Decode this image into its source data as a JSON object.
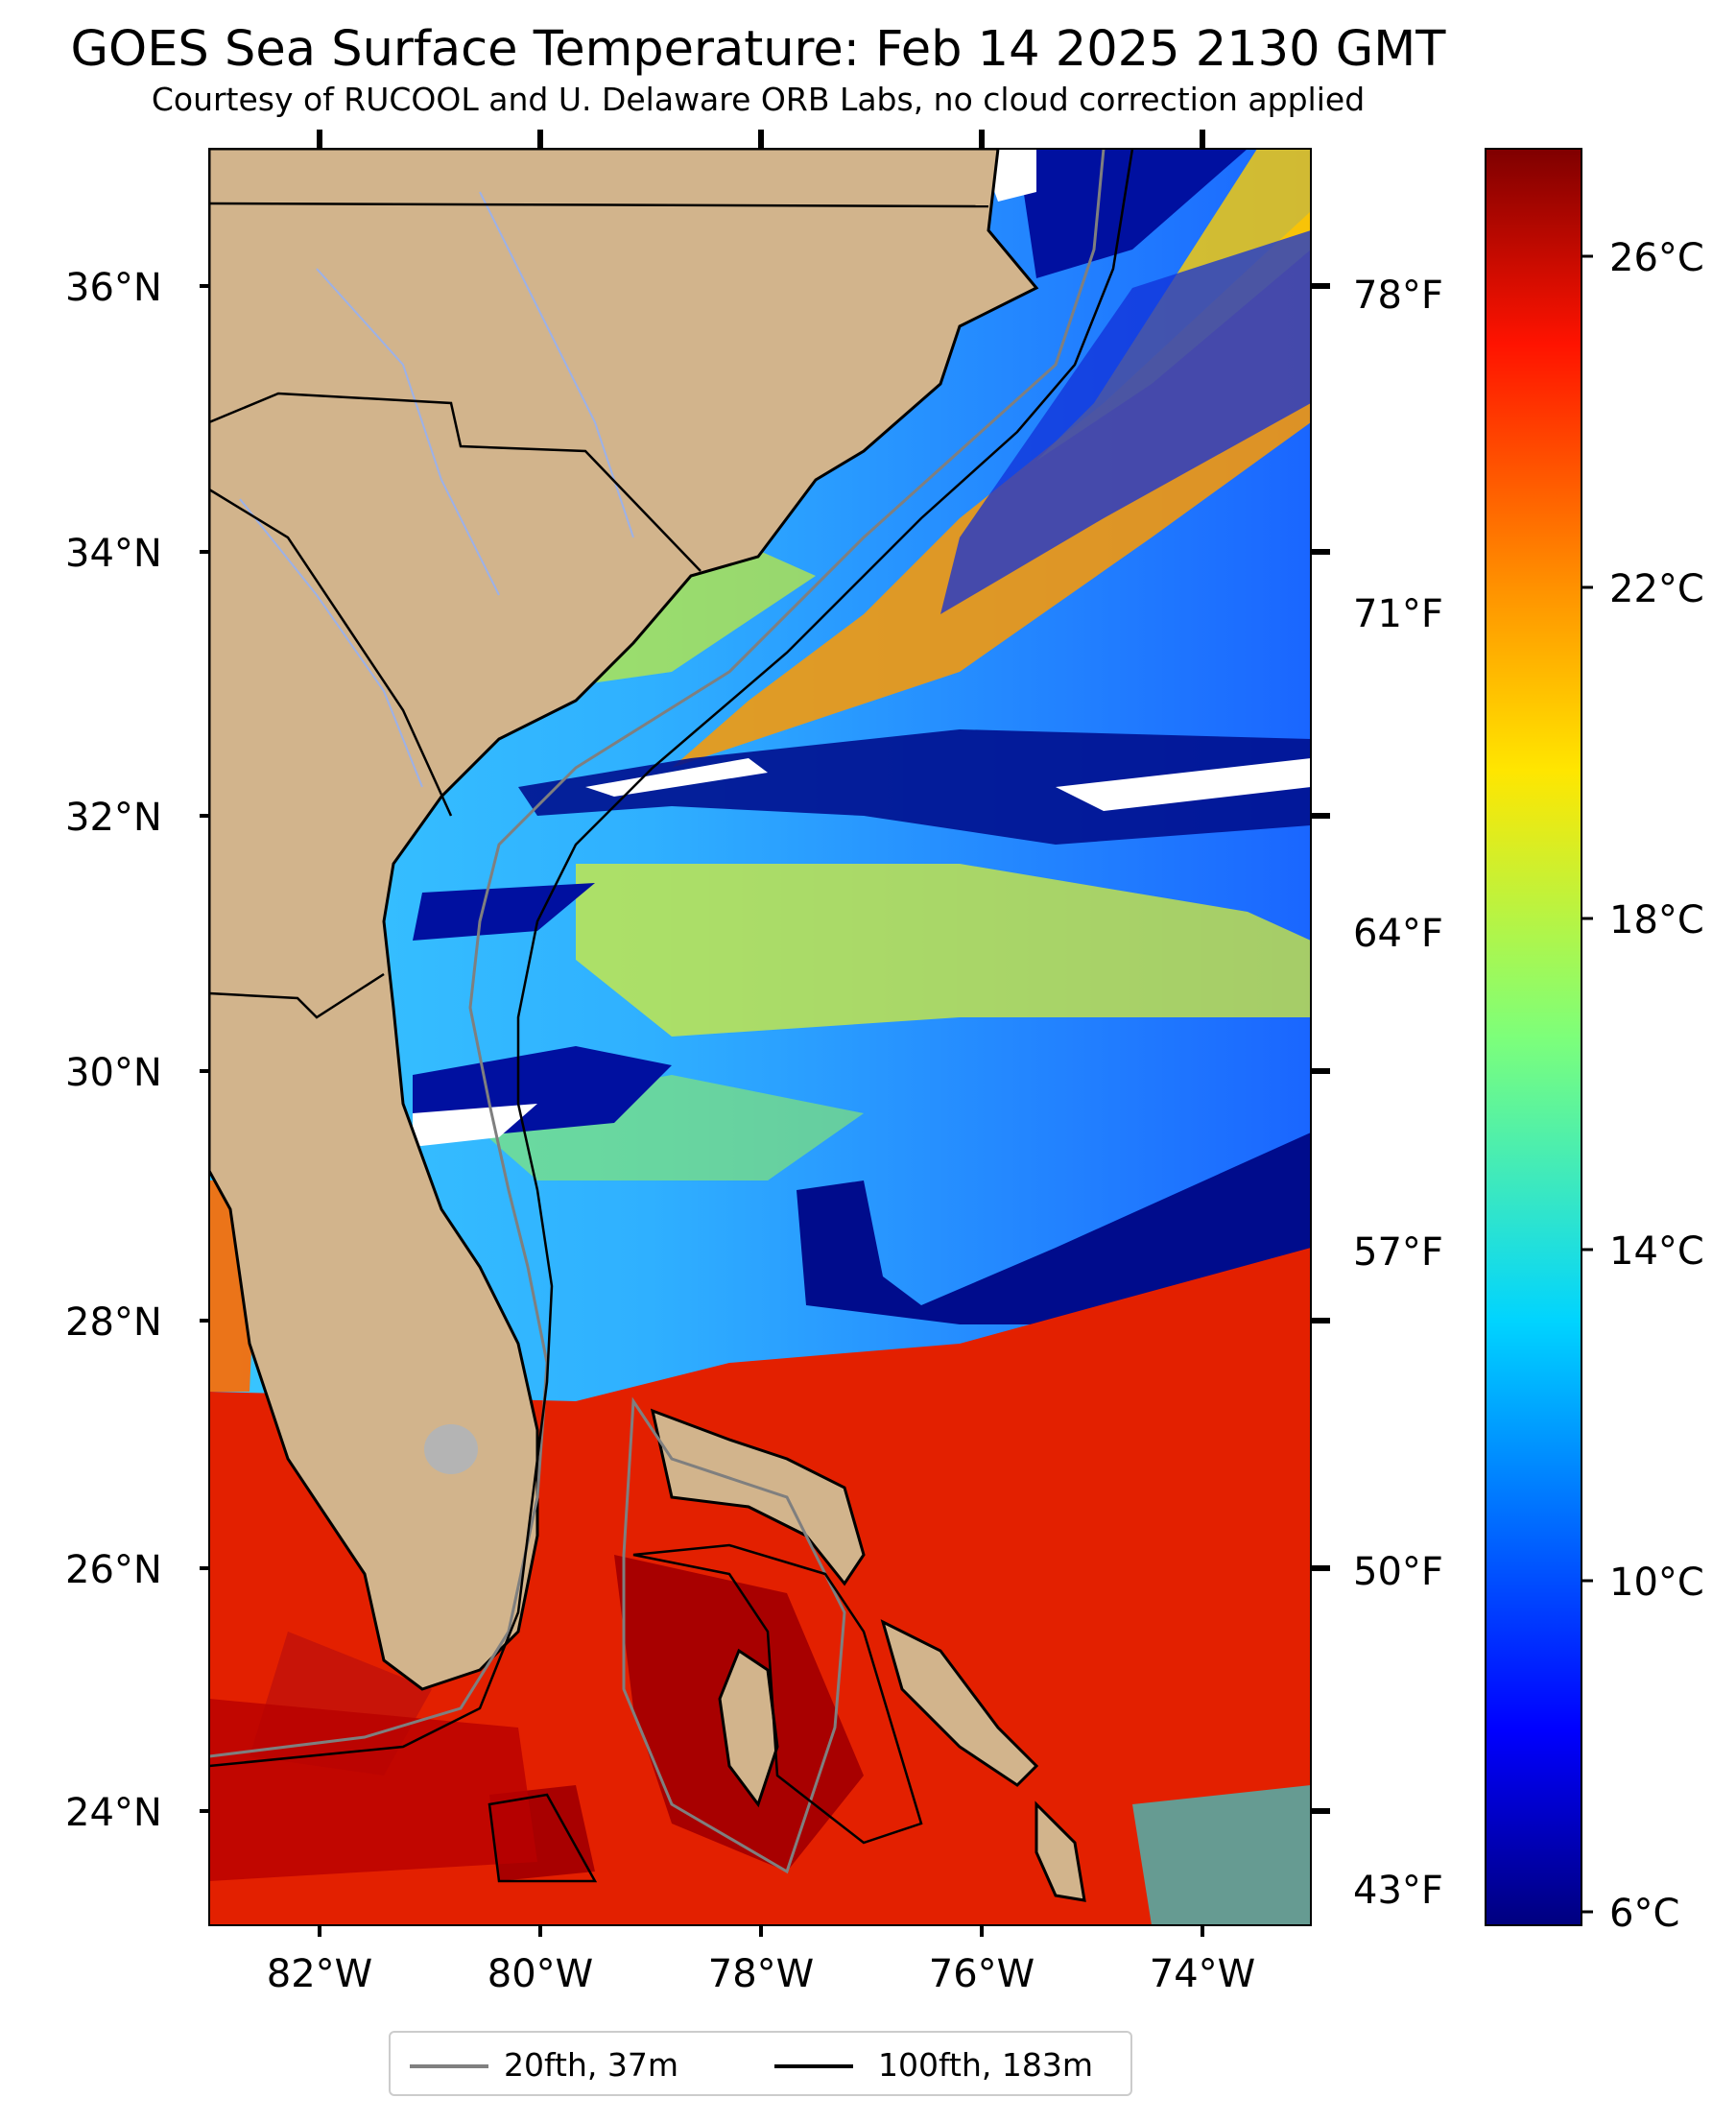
{
  "title": "GOES Sea Surface Temperature: Feb 14 2025 2130 GMT",
  "subtitle": "Courtesy of RUCOOL and U. Delaware ORB Labs, no cloud correction applied",
  "lat_labels": [
    "36°N",
    "34°N",
    "32°N",
    "30°N",
    "28°N",
    "26°N",
    "24°N"
  ],
  "lon_labels": [
    "82°W",
    "80°W",
    "78°W",
    "76°W",
    "74°W"
  ],
  "fahrenheit_labels": [
    "78°F",
    "71°F",
    "64°F",
    "57°F",
    "50°F",
    "43°F"
  ],
  "colorbar": {
    "labels": [
      "26°C",
      "22°C",
      "18°C",
      "14°C",
      "10°C",
      "6°C"
    ],
    "colormap": "jet"
  },
  "legend": [
    {
      "label": "20fth, 37m",
      "color": "#808080"
    },
    {
      "label": "100fth, 183m",
      "color": "#000000"
    }
  ],
  "colors": {
    "land": "#d2b48c",
    "warm_water": "#e01a00",
    "cold_water": "#0010a0",
    "cloud": "#ffffff"
  }
}
